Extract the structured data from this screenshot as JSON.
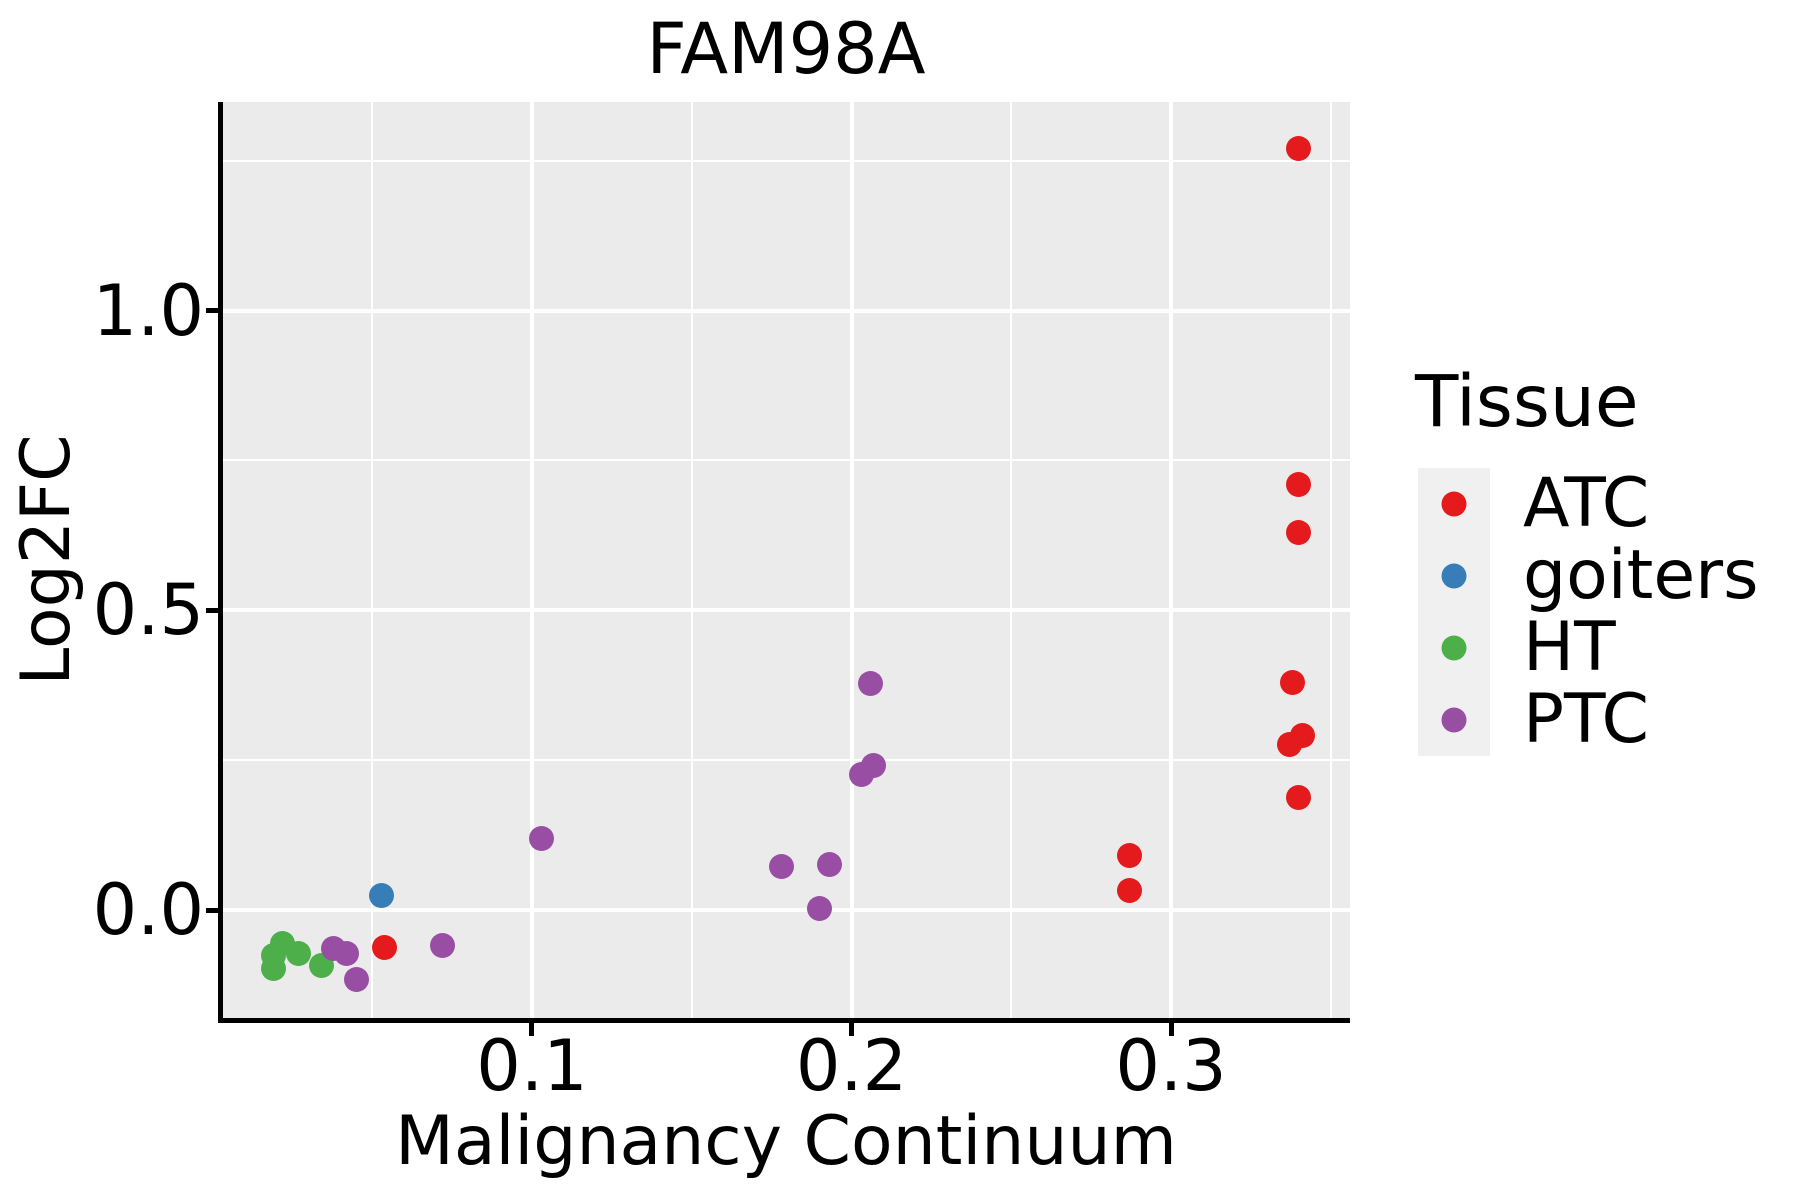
{
  "chart_data": {
    "type": "scatter",
    "title": "FAM98A",
    "xlabel": "Malignancy Continuum",
    "ylabel": "Log2FC",
    "legend_title": "Tissue",
    "legend_position": "right",
    "grid": "on",
    "panel_bg": "#EBEBEB",
    "grid_color": "#FFFFFF",
    "spine_color": "#000000",
    "legend_key_bg": "#F0F0F0",
    "xlim": [
      0.003,
      0.356
    ],
    "ylim": [
      -0.18,
      1.348
    ],
    "x_ticks": {
      "values": [
        0.1,
        0.2,
        0.3
      ],
      "labels": [
        "0.1",
        "0.2",
        "0.3"
      ],
      "minor": [
        0.05,
        0.15,
        0.25,
        0.35
      ]
    },
    "y_ticks": {
      "values": [
        0.0,
        0.5,
        1.0
      ],
      "labels": [
        "0.0",
        "0.5",
        "1.0"
      ],
      "minor": [
        0.25,
        0.75,
        1.25
      ]
    },
    "series": [
      {
        "name": "ATC",
        "color": "#E41A1C",
        "points": [
          [
            0.34,
            1.27
          ],
          [
            0.34,
            0.71
          ],
          [
            0.34,
            0.63
          ],
          [
            0.338,
            0.379
          ],
          [
            0.341,
            0.292
          ],
          [
            0.337,
            0.276
          ],
          [
            0.34,
            0.187
          ],
          [
            0.287,
            0.091
          ],
          [
            0.287,
            0.033
          ],
          [
            0.054,
            -0.062
          ]
        ]
      },
      {
        "name": "goiters",
        "color": "#377EB8",
        "points": [
          [
            0.053,
            0.025
          ]
        ]
      },
      {
        "name": "HT",
        "color": "#4DAF4A",
        "points": [
          [
            0.022,
            -0.056
          ],
          [
            0.019,
            -0.076
          ],
          [
            0.027,
            -0.073
          ],
          [
            0.019,
            -0.098
          ],
          [
            0.034,
            -0.093
          ]
        ]
      },
      {
        "name": "PTC",
        "color": "#984EA3",
        "points": [
          [
            0.038,
            -0.064
          ],
          [
            0.042,
            -0.073
          ],
          [
            0.045,
            -0.116
          ],
          [
            0.072,
            -0.059
          ],
          [
            0.103,
            0.119
          ],
          [
            0.178,
            0.073
          ],
          [
            0.193,
            0.076
          ],
          [
            0.19,
            0.003
          ],
          [
            0.203,
            0.226
          ],
          [
            0.207,
            0.242
          ],
          [
            0.206,
            0.378
          ]
        ]
      }
    ]
  }
}
